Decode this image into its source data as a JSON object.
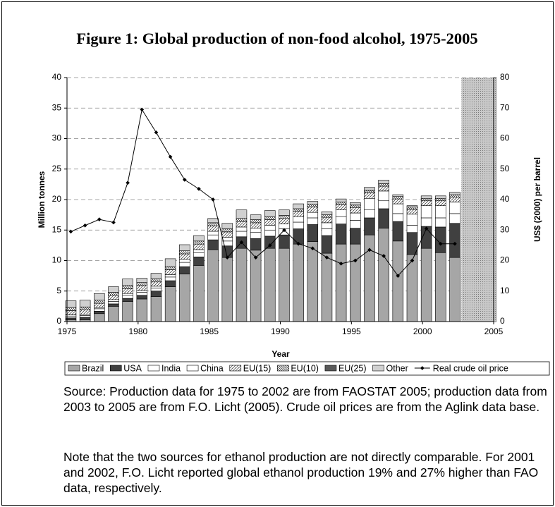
{
  "chart_data": {
    "type": "stacked-bar-line",
    "title": "Figure 1: Global production of non-food alcohol, 1975-2005",
    "xlabel": "Year",
    "ylabel": "Million tonnes",
    "y2label": "US$ (2000) per barrel",
    "x": [
      1975,
      1976,
      1977,
      1978,
      1979,
      1980,
      1981,
      1982,
      1983,
      1984,
      1985,
      1986,
      1987,
      1988,
      1989,
      1990,
      1991,
      1992,
      1993,
      1994,
      1995,
      1996,
      1997,
      1998,
      1999,
      2000,
      2001,
      2002
    ],
    "xlim": [
      1975,
      2005
    ],
    "xticks": [
      1975,
      1980,
      1985,
      1990,
      1995,
      2000,
      2005
    ],
    "ylim": [
      0,
      40
    ],
    "yticks": [
      0,
      5,
      10,
      15,
      20,
      25,
      30,
      35,
      40
    ],
    "y2lim": [
      0,
      80
    ],
    "y2ticks": [
      0,
      10,
      20,
      30,
      40,
      50,
      60,
      70,
      80
    ],
    "grid": true,
    "series": [
      {
        "name": "Brazil",
        "color": "#a6a6a6",
        "values": [
          0.3,
          0.3,
          1.3,
          2.5,
          3.3,
          3.7,
          4.1,
          5.7,
          7.8,
          9.2,
          11.8,
          10.5,
          12.0,
          11.7,
          12.0,
          12.0,
          12.7,
          13.1,
          11.2,
          12.7,
          12.7,
          14.2,
          15.3,
          13.2,
          11.0,
          12.0,
          11.3,
          10.5
        ]
      },
      {
        "name": "USA",
        "color": "#404040",
        "values": [
          0.3,
          0.4,
          0.4,
          0.4,
          0.5,
          0.6,
          0.9,
          1.0,
          1.2,
          1.4,
          1.6,
          1.9,
          1.9,
          1.9,
          2.0,
          2.2,
          2.5,
          2.8,
          2.9,
          3.3,
          2.6,
          2.8,
          3.2,
          3.2,
          3.6,
          3.6,
          4.2,
          5.6
        ]
      },
      {
        "name": "India",
        "color": "#ffffff",
        "values": [
          0.3,
          0.3,
          0.4,
          0.4,
          0.5,
          0.5,
          0.5,
          0.6,
          0.7,
          0.7,
          0.8,
          0.8,
          0.9,
          1.0,
          1.0,
          1.0,
          1.1,
          1.1,
          1.1,
          1.2,
          1.3,
          1.3,
          1.3,
          1.3,
          1.2,
          1.4,
          1.5,
          1.6
        ]
      },
      {
        "name": "China",
        "color": "#ffffff",
        "values": [
          0.2,
          0.2,
          0.2,
          0.3,
          0.3,
          0.3,
          0.3,
          0.4,
          0.5,
          0.5,
          0.6,
          0.6,
          0.7,
          0.7,
          0.8,
          0.8,
          0.9,
          0.9,
          1.0,
          1.1,
          1.2,
          1.9,
          1.6,
          1.6,
          1.8,
          2.0,
          2.0,
          1.9
        ]
      },
      {
        "name": "EU(15)",
        "color": "#ffffff",
        "pattern": "hatch",
        "values": [
          0.7,
          0.7,
          0.7,
          0.7,
          0.8,
          0.8,
          0.7,
          0.8,
          0.9,
          0.9,
          0.9,
          0.9,
          0.9,
          0.9,
          0.9,
          0.9,
          0.9,
          0.9,
          0.9,
          0.9,
          0.9,
          0.9,
          0.8,
          0.8,
          0.8,
          0.8,
          0.8,
          0.8
        ]
      },
      {
        "name": "EU(10)",
        "color": "#ffffff",
        "pattern": "hatch-dense",
        "values": [
          0.5,
          0.5,
          0.5,
          0.5,
          0.5,
          0.5,
          0.5,
          0.5,
          0.5,
          0.5,
          0.5,
          0.5,
          0.5,
          0.5,
          0.5,
          0.5,
          0.4,
          0.4,
          0.4,
          0.4,
          0.4,
          0.4,
          0.4,
          0.4,
          0.4,
          0.4,
          0.4,
          0.4
        ]
      },
      {
        "name": "EU(25)",
        "color": "#595959",
        "values": [
          0,
          0,
          0,
          0,
          0,
          0,
          0,
          0,
          0,
          0,
          0,
          0,
          0,
          0,
          0,
          0,
          0,
          0,
          0,
          0,
          0,
          0,
          0,
          0,
          0,
          0,
          0,
          0
        ]
      },
      {
        "name": "Other",
        "color": "#d0d0d0",
        "values": [
          1.1,
          1.1,
          1.1,
          0.9,
          1.1,
          0.7,
          0.9,
          1.3,
          1.0,
          0.9,
          0.7,
          0.9,
          1.4,
          0.8,
          1.0,
          0.9,
          0.8,
          0.5,
          0.5,
          0.5,
          0.4,
          0.5,
          0.6,
          0.3,
          0.2,
          0.4,
          0.4,
          0.4
        ]
      },
      {
        "name": "Real crude oil price",
        "color": "#000000",
        "type": "line",
        "axis": "y2",
        "values": [
          29.5,
          31.5,
          33.5,
          32.5,
          45.5,
          69.5,
          62,
          54,
          46.5,
          43.5,
          40,
          21,
          26,
          21,
          25,
          30,
          25.5,
          24,
          21,
          19,
          20,
          23.5,
          21.5,
          15,
          20,
          30.5,
          25.5,
          25.5
        ]
      }
    ]
  },
  "source": "Source: Production data for 1975 to 2002 are from FAOSTAT 2005; production data from 2003 to 2005 are from F.O. Licht (2005). Crude oil prices are from the Aglink data base.",
  "note": "Note that the two sources for ethanol production are not directly comparable. For 2001 and 2002, F.O. Licht reported global ethanol production 19% and 27% higher than FAO data, respectively."
}
